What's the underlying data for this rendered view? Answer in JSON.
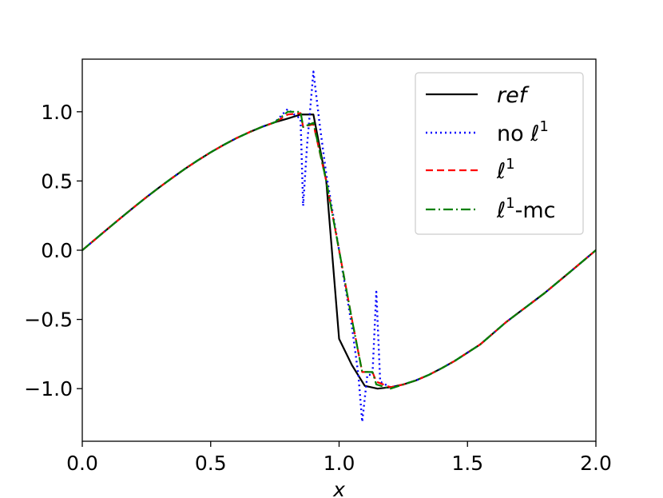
{
  "chart_data": {
    "type": "line",
    "xlabel": "x",
    "ylabel": "",
    "xlim": [
      0.0,
      2.0
    ],
    "ylim": [
      -1.38,
      1.38
    ],
    "xticks": [
      "0.0",
      "0.5",
      "1.0",
      "1.5",
      "2.0"
    ],
    "yticks": [
      "1.0",
      "0.5",
      "0.0",
      "−0.5",
      "−1.0"
    ],
    "ytick_values": [
      1.0,
      0.5,
      0.0,
      -0.5,
      -1.0
    ],
    "grid": false,
    "legend_position": "top-right",
    "series": [
      {
        "name": "ref",
        "legend_main": "ref",
        "legend_sup": "",
        "legend_suffix": "",
        "italic": true,
        "color": "#000000",
        "dash": "",
        "points": [
          [
            0.0,
            0.0
          ],
          [
            0.05,
            0.078
          ],
          [
            0.1,
            0.156
          ],
          [
            0.15,
            0.233
          ],
          [
            0.2,
            0.309
          ],
          [
            0.25,
            0.383
          ],
          [
            0.3,
            0.454
          ],
          [
            0.35,
            0.522
          ],
          [
            0.4,
            0.588
          ],
          [
            0.45,
            0.649
          ],
          [
            0.5,
            0.707
          ],
          [
            0.55,
            0.76
          ],
          [
            0.6,
            0.809
          ],
          [
            0.65,
            0.852
          ],
          [
            0.7,
            0.891
          ],
          [
            0.75,
            0.924
          ],
          [
            0.8,
            0.951
          ],
          [
            0.85,
            0.98
          ],
          [
            0.9,
            0.98
          ],
          [
            0.95,
            0.5
          ],
          [
            1.0,
            -0.64
          ],
          [
            1.05,
            -0.83
          ],
          [
            1.1,
            -0.98
          ],
          [
            1.15,
            -1.0
          ],
          [
            1.2,
            -0.99
          ],
          [
            1.25,
            -0.97
          ],
          [
            1.3,
            -0.94
          ],
          [
            1.35,
            -0.9
          ],
          [
            1.4,
            -0.852
          ],
          [
            1.45,
            -0.8
          ],
          [
            1.5,
            -0.74
          ],
          [
            1.55,
            -0.68
          ],
          [
            1.6,
            -0.6
          ],
          [
            1.65,
            -0.52
          ],
          [
            1.7,
            -0.45
          ],
          [
            1.75,
            -0.38
          ],
          [
            1.8,
            -0.31
          ],
          [
            1.85,
            -0.233
          ],
          [
            1.9,
            -0.156
          ],
          [
            1.95,
            -0.078
          ],
          [
            2.0,
            0.0
          ]
        ]
      },
      {
        "name": "no ℓ1",
        "legend_main": "no ℓ",
        "legend_sup": "1",
        "legend_suffix": "",
        "italic": false,
        "color": "#0000ff",
        "dash": "2,4",
        "points": [
          [
            0.0,
            0.0
          ],
          [
            0.05,
            0.078
          ],
          [
            0.1,
            0.156
          ],
          [
            0.15,
            0.233
          ],
          [
            0.2,
            0.309
          ],
          [
            0.25,
            0.383
          ],
          [
            0.3,
            0.454
          ],
          [
            0.35,
            0.522
          ],
          [
            0.4,
            0.588
          ],
          [
            0.45,
            0.649
          ],
          [
            0.5,
            0.707
          ],
          [
            0.55,
            0.76
          ],
          [
            0.6,
            0.809
          ],
          [
            0.65,
            0.852
          ],
          [
            0.7,
            0.891
          ],
          [
            0.75,
            0.924
          ],
          [
            0.8,
            1.02
          ],
          [
            0.825,
            0.98
          ],
          [
            0.85,
            0.95
          ],
          [
            0.86,
            0.32
          ],
          [
            0.875,
            0.75
          ],
          [
            0.9,
            1.29
          ],
          [
            0.925,
            0.9
          ],
          [
            0.95,
            0.55
          ],
          [
            1.0,
            0.0
          ],
          [
            1.05,
            -0.55
          ],
          [
            1.075,
            -0.9
          ],
          [
            1.09,
            -1.24
          ],
          [
            1.11,
            -0.9
          ],
          [
            1.13,
            -0.9
          ],
          [
            1.145,
            -0.3
          ],
          [
            1.16,
            -0.95
          ],
          [
            1.2,
            -0.99
          ],
          [
            1.25,
            -0.97
          ],
          [
            1.3,
            -0.94
          ],
          [
            1.35,
            -0.9
          ],
          [
            1.4,
            -0.852
          ],
          [
            1.45,
            -0.8
          ],
          [
            1.5,
            -0.74
          ],
          [
            1.55,
            -0.68
          ],
          [
            1.6,
            -0.6
          ],
          [
            1.65,
            -0.52
          ],
          [
            1.7,
            -0.45
          ],
          [
            1.75,
            -0.38
          ],
          [
            1.8,
            -0.31
          ],
          [
            1.85,
            -0.233
          ],
          [
            1.9,
            -0.156
          ],
          [
            1.95,
            -0.078
          ],
          [
            2.0,
            0.0
          ]
        ]
      },
      {
        "name": "ℓ1",
        "legend_main": "ℓ",
        "legend_sup": "1",
        "legend_suffix": "",
        "italic": false,
        "color": "#ff0000",
        "dash": "9,5",
        "points": [
          [
            0.0,
            0.0
          ],
          [
            0.05,
            0.078
          ],
          [
            0.1,
            0.156
          ],
          [
            0.15,
            0.233
          ],
          [
            0.2,
            0.309
          ],
          [
            0.25,
            0.383
          ],
          [
            0.3,
            0.454
          ],
          [
            0.35,
            0.522
          ],
          [
            0.4,
            0.588
          ],
          [
            0.45,
            0.649
          ],
          [
            0.5,
            0.707
          ],
          [
            0.55,
            0.76
          ],
          [
            0.6,
            0.809
          ],
          [
            0.65,
            0.852
          ],
          [
            0.7,
            0.891
          ],
          [
            0.75,
            0.924
          ],
          [
            0.8,
            0.98
          ],
          [
            0.85,
            0.99
          ],
          [
            0.86,
            0.89
          ],
          [
            0.9,
            0.91
          ],
          [
            0.95,
            0.5
          ],
          [
            1.0,
            0.0
          ],
          [
            1.05,
            -0.5
          ],
          [
            1.09,
            -0.88
          ],
          [
            1.13,
            -0.88
          ],
          [
            1.145,
            -0.95
          ],
          [
            1.2,
            -0.99
          ],
          [
            1.25,
            -0.97
          ],
          [
            1.3,
            -0.94
          ],
          [
            1.35,
            -0.9
          ],
          [
            1.4,
            -0.852
          ],
          [
            1.45,
            -0.8
          ],
          [
            1.5,
            -0.74
          ],
          [
            1.55,
            -0.68
          ],
          [
            1.6,
            -0.6
          ],
          [
            1.65,
            -0.52
          ],
          [
            1.7,
            -0.45
          ],
          [
            1.75,
            -0.38
          ],
          [
            1.8,
            -0.31
          ],
          [
            1.85,
            -0.233
          ],
          [
            1.9,
            -0.156
          ],
          [
            1.95,
            -0.078
          ],
          [
            2.0,
            0.0
          ]
        ]
      },
      {
        "name": "ℓ1-mc",
        "legend_main": "ℓ",
        "legend_sup": "1",
        "legend_suffix": "-mc",
        "italic": false,
        "color": "#008000",
        "dash": "12,4,2,4",
        "points": [
          [
            0.0,
            0.0
          ],
          [
            0.05,
            0.078
          ],
          [
            0.1,
            0.156
          ],
          [
            0.15,
            0.233
          ],
          [
            0.2,
            0.309
          ],
          [
            0.25,
            0.383
          ],
          [
            0.3,
            0.454
          ],
          [
            0.35,
            0.522
          ],
          [
            0.4,
            0.588
          ],
          [
            0.45,
            0.649
          ],
          [
            0.5,
            0.707
          ],
          [
            0.55,
            0.76
          ],
          [
            0.6,
            0.809
          ],
          [
            0.65,
            0.852
          ],
          [
            0.7,
            0.891
          ],
          [
            0.75,
            0.924
          ],
          [
            0.8,
            1.0
          ],
          [
            0.85,
            1.0
          ],
          [
            0.86,
            0.89
          ],
          [
            0.9,
            0.92
          ],
          [
            0.95,
            0.5
          ],
          [
            1.0,
            0.0
          ],
          [
            1.05,
            -0.5
          ],
          [
            1.09,
            -0.88
          ],
          [
            1.13,
            -0.88
          ],
          [
            1.145,
            -0.97
          ],
          [
            1.2,
            -1.0
          ],
          [
            1.25,
            -0.97
          ],
          [
            1.3,
            -0.94
          ],
          [
            1.35,
            -0.9
          ],
          [
            1.4,
            -0.852
          ],
          [
            1.45,
            -0.8
          ],
          [
            1.5,
            -0.74
          ],
          [
            1.55,
            -0.68
          ],
          [
            1.6,
            -0.6
          ],
          [
            1.65,
            -0.52
          ],
          [
            1.7,
            -0.45
          ],
          [
            1.75,
            -0.38
          ],
          [
            1.8,
            -0.31
          ],
          [
            1.85,
            -0.233
          ],
          [
            1.9,
            -0.156
          ],
          [
            1.95,
            -0.078
          ],
          [
            2.0,
            0.0
          ]
        ]
      }
    ]
  }
}
